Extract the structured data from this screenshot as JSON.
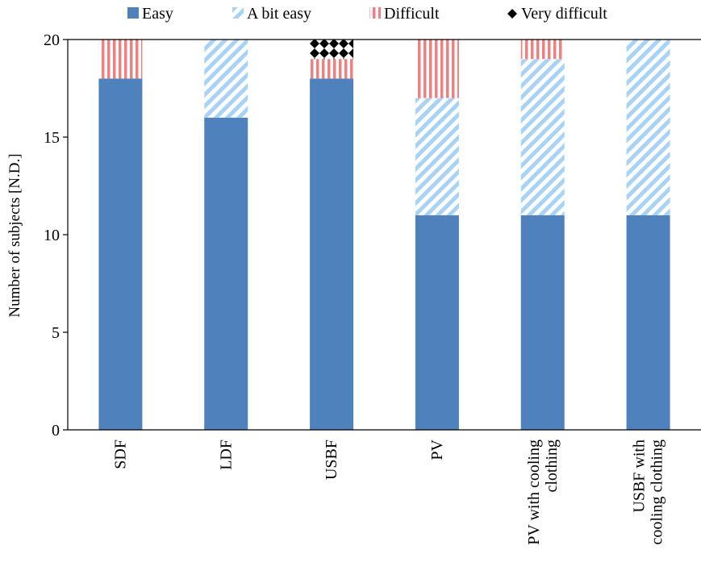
{
  "chart_data": {
    "type": "bar",
    "stacked": true,
    "categories": [
      [
        "SDF"
      ],
      [
        "LDF"
      ],
      [
        "USBF"
      ],
      [
        "PV"
      ],
      [
        "PV with cooling",
        "clothing"
      ],
      [
        "USBF with",
        "cooling clothing"
      ]
    ],
    "series": [
      {
        "name": "Easy",
        "values": [
          18,
          16,
          18,
          11,
          11,
          11
        ],
        "color": "#4f81bd",
        "pattern": "solid"
      },
      {
        "name": "A bit easy",
        "values": [
          0,
          4,
          0,
          6,
          8,
          9
        ],
        "color": "#a9d3f5",
        "pattern": "diagonal-stripes"
      },
      {
        "name": "Difficult",
        "values": [
          2,
          0,
          1,
          3,
          1,
          0
        ],
        "color": "#f08080",
        "pattern": "vertical-stripes"
      },
      {
        "name": "Very difficult",
        "values": [
          0,
          0,
          1,
          0,
          0,
          0
        ],
        "color": "#000000",
        "pattern": "diamonds"
      }
    ],
    "ylabel": "Number of subjects  [N.D.]",
    "ylim": [
      0,
      20
    ],
    "yticks": [
      0,
      5,
      10,
      15,
      20
    ],
    "grid": false,
    "legend_position": "top"
  }
}
